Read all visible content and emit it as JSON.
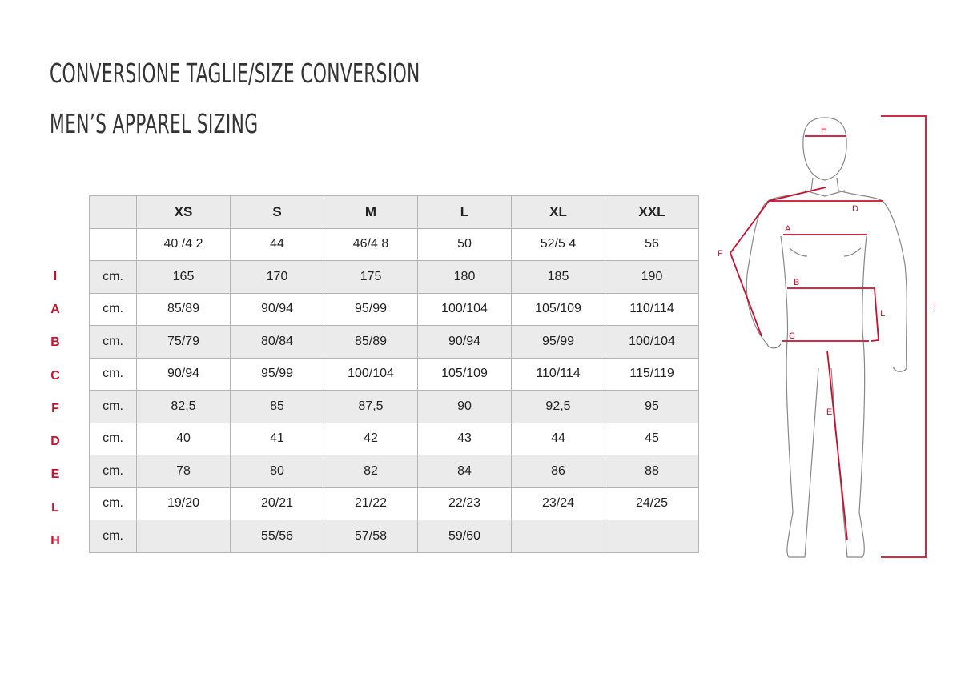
{
  "title": "CONVERSIONE TAGLIE/SIZE CONVERSION",
  "subtitle": "MEN’S APPAREL SIZING",
  "accent_color": "#c8102e",
  "table": {
    "sizes": [
      "XS",
      "S",
      "M",
      "L",
      "XL",
      "XXL"
    ],
    "rows": [
      {
        "label": "",
        "unit": "",
        "values": [
          "40 /4 2",
          "44",
          "46/4 8",
          "50",
          "52/5 4",
          "56"
        ]
      },
      {
        "label": "I",
        "unit": "cm.",
        "values": [
          "165",
          "170",
          "175",
          "180",
          "185",
          "190"
        ]
      },
      {
        "label": "A",
        "unit": "cm.",
        "values": [
          "85/89",
          "90/94",
          "95/99",
          "100/104",
          "105/109",
          "110/114"
        ]
      },
      {
        "label": "B",
        "unit": "cm.",
        "values": [
          "75/79",
          "80/84",
          "85/89",
          "90/94",
          "95/99",
          "100/104"
        ]
      },
      {
        "label": "C",
        "unit": "cm.",
        "values": [
          "90/94",
          "95/99",
          "100/104",
          "105/109",
          "110/114",
          "115/119"
        ]
      },
      {
        "label": "F",
        "unit": "cm.",
        "values": [
          "82,5",
          "85",
          "87,5",
          "90",
          "92,5",
          "95"
        ]
      },
      {
        "label": "D",
        "unit": "cm.",
        "values": [
          "40",
          "41",
          "42",
          "43",
          "44",
          "45"
        ]
      },
      {
        "label": "E",
        "unit": "cm.",
        "values": [
          "78",
          "80",
          "82",
          "84",
          "86",
          "88"
        ]
      },
      {
        "label": "L",
        "unit": "cm.",
        "values": [
          "19/20",
          "20/21",
          "21/22",
          "22/23",
          "23/24",
          "24/25"
        ]
      },
      {
        "label": "H",
        "unit": "cm.",
        "values": [
          "",
          "55/56",
          "57/58",
          "59/60",
          "",
          ""
        ]
      }
    ]
  },
  "figure_labels": {
    "H": "H",
    "D": "D",
    "A": "A",
    "F": "F",
    "B": "B",
    "L": "L",
    "C": "C",
    "E": "E",
    "I": "I"
  }
}
